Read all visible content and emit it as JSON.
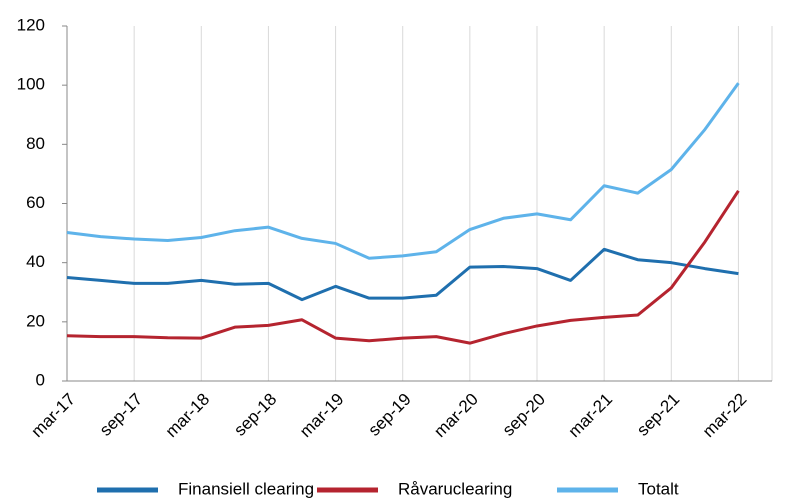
{
  "chart_data": {
    "type": "line",
    "categories": [
      "mar-17",
      null,
      "sep-17",
      null,
      "mar-18",
      null,
      "sep-18",
      null,
      "mar-19",
      null,
      "sep-19",
      null,
      "mar-20",
      null,
      "sep-20",
      null,
      "mar-21",
      null,
      "sep-21",
      null,
      "mar-22"
    ],
    "series": [
      {
        "name": "Finansiell clearing",
        "color": "#1f6fae",
        "values": [
          35,
          34,
          33,
          33,
          34,
          32.7,
          33,
          27.5,
          32,
          28,
          28,
          29,
          38.5,
          38.7,
          38,
          34,
          44.5,
          41,
          40,
          38,
          36.3
        ]
      },
      {
        "name": "Råvaruclearing",
        "color": "#b5242f",
        "values": [
          15.3,
          15,
          15,
          14.6,
          14.5,
          18.2,
          18.8,
          20.7,
          14.5,
          13.6,
          14.5,
          15,
          12.8,
          16,
          18.6,
          20.5,
          21.5,
          22.3,
          31.5,
          47,
          64.3
        ]
      },
      {
        "name": "Totalt",
        "color": "#5eb3ea",
        "values": [
          50.2,
          48.8,
          48,
          47.5,
          48.5,
          50.8,
          52,
          48.2,
          46.5,
          41.5,
          42.3,
          43.7,
          51.2,
          55,
          56.5,
          54.5,
          66,
          63.5,
          71.5,
          85,
          100.7
        ]
      }
    ],
    "ylim": [
      0,
      120
    ],
    "yticks": [
      0,
      20,
      40,
      60,
      80,
      100,
      120
    ],
    "grid": true
  }
}
